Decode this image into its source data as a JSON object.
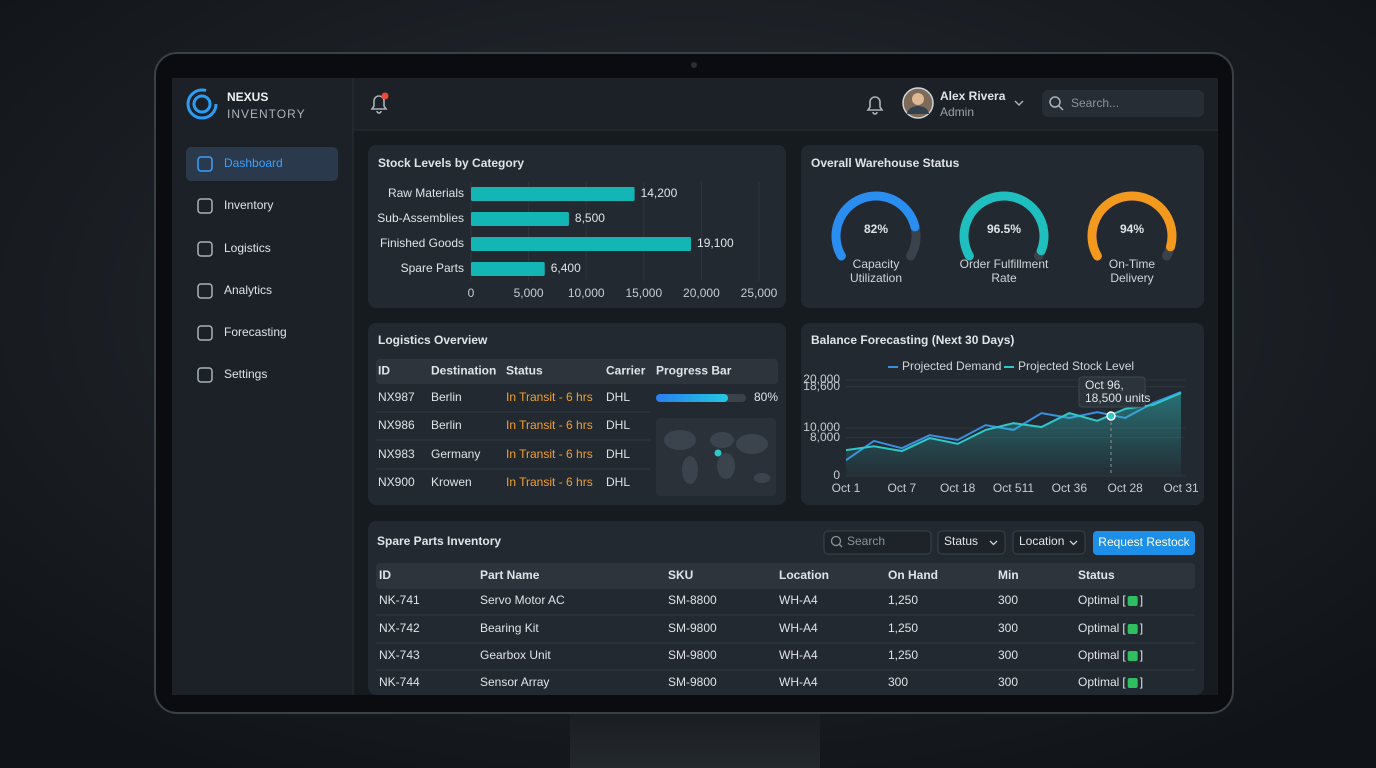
{
  "brand": {
    "name": "NEXUS",
    "sub": "INVENTORY"
  },
  "nav": [
    "Dashboard",
    "Inventory",
    "Logistics",
    "Analytics",
    "Forecasting",
    "Settings"
  ],
  "user": {
    "name": "Alex Rivera",
    "role": "Admin"
  },
  "search_placeholder": "Search...",
  "chart_data": [
    {
      "type": "bar",
      "orientation": "horizontal",
      "title": "Stock Levels by Category",
      "categories": [
        "Raw Materials",
        "Sub-Assemblies",
        "Finished Goods",
        "Spare Parts"
      ],
      "values": [
        14200,
        8500,
        19100,
        6400
      ],
      "value_labels": [
        "14,200",
        "8,500",
        "19,100",
        "6,400"
      ],
      "color": "#14b5b5",
      "xlim": [
        0,
        25000
      ],
      "xticks": [
        0,
        {
          "value": 5000,
          "label": "5,000"
        },
        {
          "value": 10000,
          "label": "10,000"
        },
        {
          "value": 15000,
          "label": "15,000"
        },
        {
          "value": 20000,
          "label": "20,000"
        },
        {
          "value": 25000,
          "label": "25,000"
        }
      ],
      "grid": true
    },
    {
      "type": "gauge",
      "title": "Overall Warehouse Status",
      "categories": [
        "Capacity Utilization",
        "Order Fulfillment Rate",
        "On-Time Delivery"
      ],
      "values": [
        82,
        96.5,
        94
      ],
      "value_labels": [
        "82%",
        "96.5%",
        "94%"
      ],
      "colors": [
        "#2a8df0",
        "#1fbfbf",
        "#f39a1e"
      ],
      "ylim": [
        0,
        100
      ]
    },
    {
      "type": "line",
      "title": "Balance Forecasting (Next 30 Days)",
      "categories": [
        "Oct 1",
        null,
        "Oct 7",
        null,
        "Oct 18",
        null,
        "Oct 511",
        null,
        "Oct 36",
        null,
        "Oct 28",
        null,
        "Oct 31"
      ],
      "series": [
        {
          "name": "Projected Demand",
          "color": "#3a8fe0",
          "values": [
            3300,
            7300,
            5800,
            8500,
            7500,
            10600,
            9600,
            13100,
            12100,
            13300,
            12100,
            15200,
            17500
          ]
        },
        {
          "name": "Projected Stock Level",
          "color": "#2ec8c8",
          "values": [
            5400,
            6200,
            5200,
            7900,
            6700,
            9600,
            11000,
            10200,
            13100,
            11500,
            14000,
            14800,
            17300
          ]
        }
      ],
      "ylim": [
        0,
        20000
      ],
      "yticks": [
        0,
        {
          "value": 8000,
          "label": "8,000"
        },
        {
          "value": 10000,
          "label": "10,000"
        },
        {
          "value": 18600,
          "label": "18,600"
        },
        {
          "value": 20000,
          "label": "20,000"
        }
      ],
      "annotation": [
        "Oct 96,",
        "18,500 units"
      ],
      "grid": true
    }
  ],
  "logistics": {
    "title": "Logistics Overview",
    "columns": [
      "ID",
      "Destination",
      "Status",
      "Carrier",
      "Progress Bar"
    ],
    "rows": [
      [
        "NX987",
        "Berlin",
        "In Transit - 6 hrs",
        "DHL"
      ],
      [
        "NX986",
        "Berlin",
        "In Transit - 6 hrs",
        "DHL"
      ],
      [
        "NX983",
        "Germany",
        "In Transit - 6 hrs",
        "DHL"
      ],
      [
        "NX900",
        "Krowen",
        "In Transit - 6 hrs",
        "DHL"
      ]
    ],
    "progress": {
      "value": 80,
      "label": "80%"
    }
  },
  "spare_parts": {
    "title": "Spare Parts Inventory",
    "search": "Search",
    "filters": [
      "Status",
      "Location"
    ],
    "button": "Request Restock",
    "columns": [
      "ID",
      "Part Name",
      "SKU",
      "Location",
      "On Hand",
      "Min",
      "Status"
    ],
    "rows": [
      [
        "NK-741",
        "Servo Motor AC",
        "SM-8800",
        "WH-A4",
        "1,250",
        "300",
        {
          "label": "Optimal",
          "open": "[",
          "close": "]"
        }
      ],
      [
        "NX-742",
        "Bearing Kit",
        "SM-9800",
        "WH-A4",
        "1,250",
        "300",
        {
          "label": "Optimal",
          "open": "[",
          "close": "]"
        }
      ],
      [
        "NX-743",
        "Gearbox Unit",
        "SM-9800",
        "WH-A4",
        "1,250",
        "300",
        {
          "label": "Optimal",
          "open": "[",
          "close": "]"
        }
      ],
      [
        "NK-744",
        "Sensor Array",
        "SM-9800",
        "WH-A4",
        "300",
        "300",
        {
          "label": "Optimal",
          "open": "[",
          "close": "]"
        }
      ]
    ]
  }
}
